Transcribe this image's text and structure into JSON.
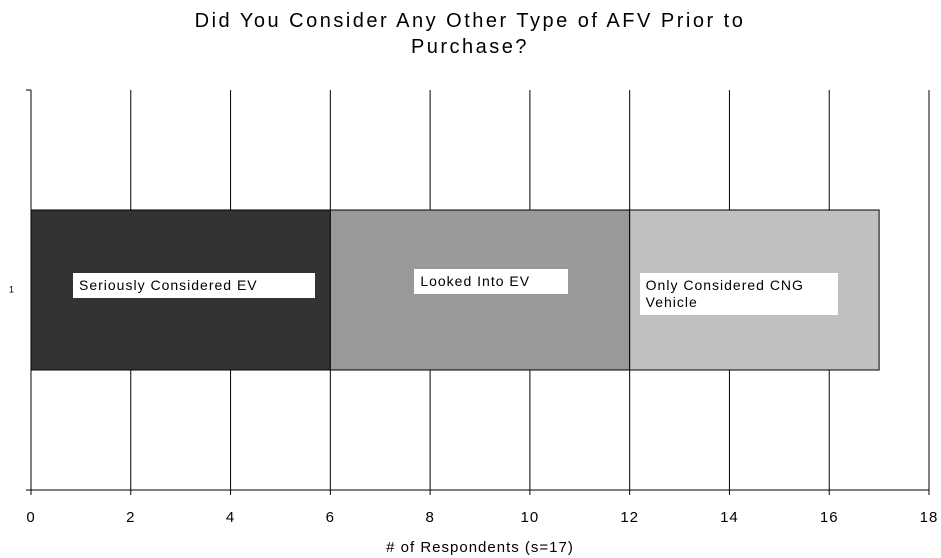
{
  "chart_data": {
    "type": "stacked_bar_horizontal",
    "title": "Did You Consider Any Other Type of AFV Prior to Purchase?",
    "categories": [
      "1"
    ],
    "series": [
      {
        "name": "Seriously Considered EV",
        "color": "#333333",
        "values": [
          6
        ]
      },
      {
        "name": "Looked Into EV",
        "color": "#999999",
        "values": [
          6
        ]
      },
      {
        "name": "Only Considered CNG Vehicle",
        "color": "#c0c0c0",
        "values": [
          5
        ]
      }
    ],
    "xlabel": "# of Respondents (s=17)",
    "xlim": [
      0,
      18
    ],
    "xticks": [
      0,
      2,
      4,
      6,
      8,
      10,
      12,
      14,
      16,
      18
    ],
    "grid": true
  }
}
